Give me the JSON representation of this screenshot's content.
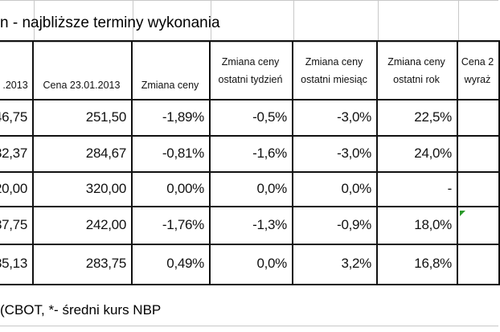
{
  "title": "n - najbliższe terminy wykonania",
  "table": {
    "header": [
      [
        ".2013"
      ],
      [
        "Cena 23.01.2013"
      ],
      [
        "Zmiana ceny"
      ],
      [
        "Zmiana ceny",
        "ostatni tydzień"
      ],
      [
        "Zmiana ceny",
        "ostatni miesiąc"
      ],
      [
        "Zmiana ceny",
        "ostatni rok"
      ],
      [
        "Cena 2",
        "wyraż"
      ]
    ],
    "rows": [
      [
        "46,75",
        "251,50",
        "-1,89%",
        "-0,5%",
        "-3,0%",
        "22,5%"
      ],
      [
        "32,37",
        "284,67",
        "-0,81%",
        "-1,6%",
        "-3,0%",
        "24,0%"
      ],
      [
        "20,00",
        "320,00",
        "0,00%",
        "0,0%",
        "0,0%",
        "-"
      ],
      [
        "37,75",
        "242,00",
        "-1,76%",
        "-1,3%",
        "-0,9%",
        "18,0%"
      ],
      [
        "35,13",
        "283,75",
        "0,49%",
        "0,0%",
        "3,2%",
        "16,8%"
      ]
    ]
  },
  "footer": "(CBOT, *- średni kurs NBP"
}
